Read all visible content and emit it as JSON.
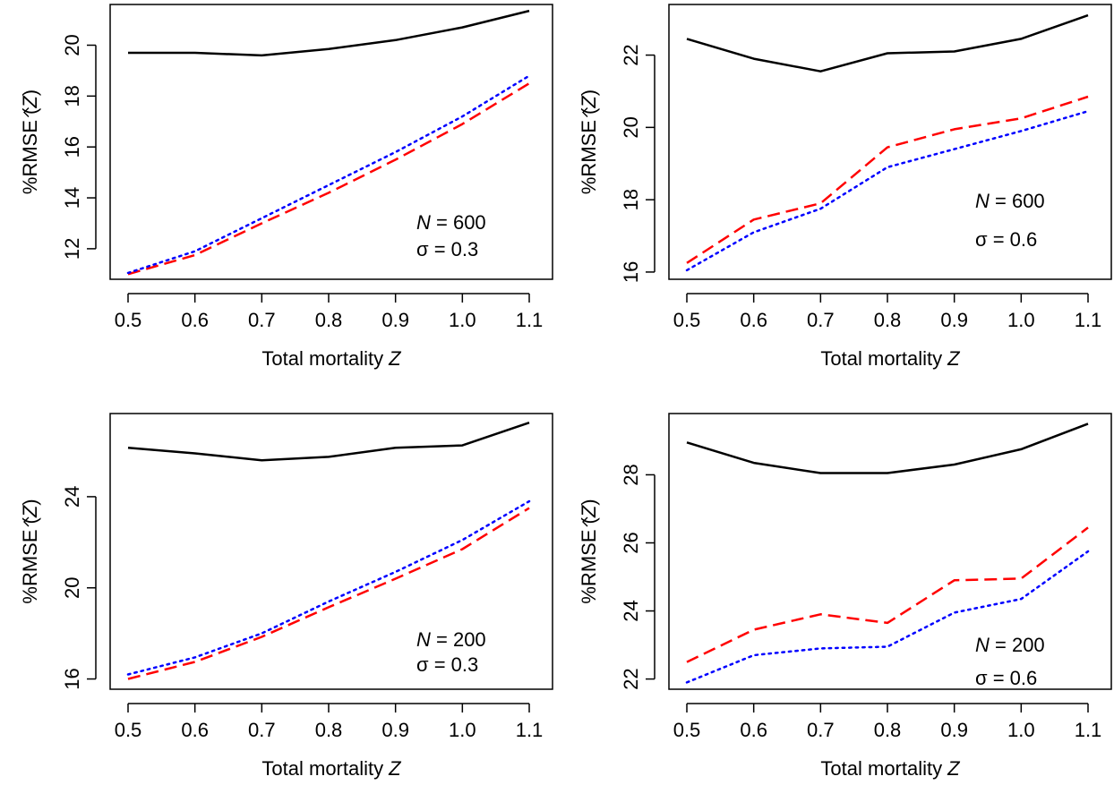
{
  "chart_data": [
    {
      "type": "line",
      "xlabel": "Total mortality",
      "xlabel_var": "Z",
      "ylabel": "%RMSE",
      "ylabel_var": "Z",
      "x": [
        0.5,
        0.6,
        0.7,
        0.8,
        0.9,
        1.0,
        1.1
      ],
      "xticks": [
        "0.5",
        "0.6",
        "0.7",
        "0.8",
        "0.9",
        "1.0",
        "1.1"
      ],
      "yticks": [
        "12",
        "14",
        "16",
        "18",
        "20"
      ],
      "ylim": [
        10.8,
        21.6
      ],
      "annotation": {
        "n_var": "N",
        "n_text": " = 600",
        "sigma_text": "σ = 0.3"
      },
      "series": [
        {
          "color": "#000000",
          "style": "solid",
          "values": [
            19.7,
            19.7,
            19.6,
            19.85,
            20.2,
            20.7,
            21.35
          ]
        },
        {
          "color": "#ff0000",
          "style": "dashed",
          "values": [
            11.0,
            11.75,
            13.0,
            14.2,
            15.5,
            16.9,
            18.5
          ]
        },
        {
          "color": "#0000ff",
          "style": "dotted",
          "values": [
            11.05,
            11.9,
            13.2,
            14.5,
            15.8,
            17.2,
            18.8
          ]
        }
      ]
    },
    {
      "type": "line",
      "xlabel": "Total mortality",
      "xlabel_var": "Z",
      "ylabel": "%RMSE",
      "ylabel_var": "Z",
      "x": [
        0.5,
        0.6,
        0.7,
        0.8,
        0.9,
        1.0,
        1.1
      ],
      "xticks": [
        "0.5",
        "0.6",
        "0.7",
        "0.8",
        "0.9",
        "1.0",
        "1.1"
      ],
      "yticks": [
        "16",
        "18",
        "20",
        "22"
      ],
      "ylim": [
        15.8,
        23.4
      ],
      "annotation": {
        "n_var": "N",
        "n_text": " = 600",
        "sigma_text": "σ = 0.6"
      },
      "series": [
        {
          "color": "#000000",
          "style": "solid",
          "values": [
            22.45,
            21.9,
            21.55,
            22.05,
            22.1,
            22.45,
            23.1
          ]
        },
        {
          "color": "#ff0000",
          "style": "dashed",
          "values": [
            16.25,
            17.45,
            17.9,
            19.45,
            19.95,
            20.25,
            20.85
          ]
        },
        {
          "color": "#0000ff",
          "style": "dotted",
          "values": [
            16.05,
            17.1,
            17.75,
            18.9,
            19.4,
            19.9,
            20.45
          ]
        }
      ]
    },
    {
      "type": "line",
      "xlabel": "Total mortality",
      "xlabel_var": "Z",
      "ylabel": "%RMSE",
      "ylabel_var": "Z",
      "x": [
        0.5,
        0.6,
        0.7,
        0.8,
        0.9,
        1.0,
        1.1
      ],
      "xticks": [
        "0.5",
        "0.6",
        "0.7",
        "0.8",
        "0.9",
        "1.0",
        "1.1"
      ],
      "yticks": [
        "16",
        "20",
        "24"
      ],
      "ylim": [
        15.55,
        27.65
      ],
      "annotation": {
        "n_var": "N",
        "n_text": " = 200",
        "sigma_text": "σ = 0.3"
      },
      "series": [
        {
          "color": "#000000",
          "style": "solid",
          "values": [
            26.15,
            25.9,
            25.6,
            25.75,
            26.15,
            26.25,
            27.25
          ]
        },
        {
          "color": "#ff0000",
          "style": "dashed",
          "values": [
            16.0,
            16.75,
            17.85,
            19.15,
            20.4,
            21.7,
            23.5
          ]
        },
        {
          "color": "#0000ff",
          "style": "dotted",
          "values": [
            16.2,
            16.95,
            18.0,
            19.4,
            20.7,
            22.1,
            23.8
          ]
        }
      ]
    },
    {
      "type": "line",
      "xlabel": "Total mortality",
      "xlabel_var": "Z",
      "ylabel": "%RMSE",
      "ylabel_var": "Z",
      "x": [
        0.5,
        0.6,
        0.7,
        0.8,
        0.9,
        1.0,
        1.1
      ],
      "xticks": [
        "0.5",
        "0.6",
        "0.7",
        "0.8",
        "0.9",
        "1.0",
        "1.1"
      ],
      "yticks": [
        "22",
        "24",
        "26",
        "28"
      ],
      "ylim": [
        21.7,
        29.8
      ],
      "annotation": {
        "n_var": "N",
        "n_text": " = 200",
        "sigma_text": "σ = 0.6"
      },
      "series": [
        {
          "color": "#000000",
          "style": "solid",
          "values": [
            28.95,
            28.35,
            28.05,
            28.05,
            28.3,
            28.75,
            29.5
          ]
        },
        {
          "color": "#ff0000",
          "style": "dashed",
          "values": [
            22.5,
            23.45,
            23.9,
            23.65,
            24.9,
            24.95,
            26.45
          ]
        },
        {
          "color": "#0000ff",
          "style": "dotted",
          "values": [
            21.9,
            22.7,
            22.9,
            22.95,
            23.95,
            24.35,
            25.75
          ]
        }
      ]
    }
  ]
}
